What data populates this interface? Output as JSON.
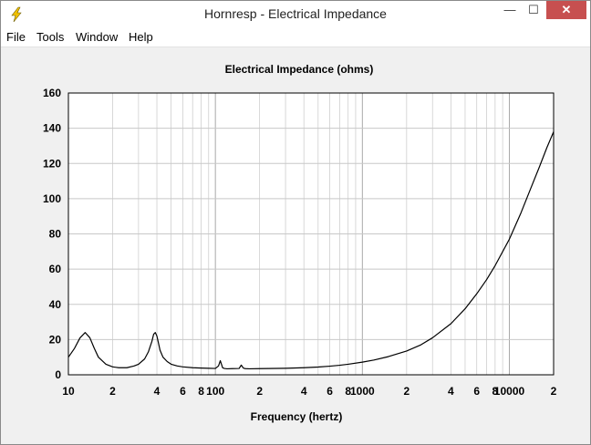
{
  "window": {
    "title": "Hornresp - Electrical Impedance",
    "minimize_glyph": "—",
    "maximize_glyph": "☐",
    "close_glyph": "✕",
    "icon": "lightning-bolt-icon"
  },
  "menu": {
    "items": [
      "File",
      "Tools",
      "Window",
      "Help"
    ]
  },
  "colors": {
    "plot_background": "#ffffff",
    "grid": "#c8c8c8",
    "curve": "#000000",
    "close_button": "#c75050",
    "icon_bolt": "#f2c200"
  },
  "chart_data": {
    "type": "line",
    "title": "Electrical Impedance (ohms)",
    "xlabel": "Frequency (hertz)",
    "ylabel": "",
    "x_scale": "log",
    "xlim": [
      10,
      20000
    ],
    "ylim": [
      0,
      160
    ],
    "grid": true,
    "y_ticks": [
      0,
      20,
      40,
      60,
      80,
      100,
      120,
      140,
      160
    ],
    "y_tick_labels": [
      "0",
      "20",
      "40",
      "60",
      "80",
      "100",
      "120",
      "140",
      "160"
    ],
    "x_ticks": [
      10,
      20,
      40,
      60,
      80,
      100,
      200,
      400,
      600,
      800,
      1000,
      2000,
      4000,
      6000,
      8000,
      10000,
      20000
    ],
    "x_tick_labels": [
      "10",
      "2",
      "4",
      "6",
      "8",
      "100",
      "2",
      "4",
      "6",
      "8",
      "1000",
      "2",
      "4",
      "6",
      "8",
      "10000",
      "2"
    ],
    "series": [
      {
        "x": [
          10,
          11,
          12,
          13,
          14,
          15,
          16,
          18,
          20,
          22,
          25,
          28,
          30,
          33,
          35,
          37,
          38,
          39,
          40,
          41,
          42,
          44,
          47,
          50,
          55,
          60,
          70,
          80,
          90,
          100,
          105,
          108,
          110,
          112,
          115,
          120,
          130,
          145,
          150,
          155,
          160,
          170,
          200,
          300,
          400,
          500,
          600,
          700,
          800,
          1000,
          1200,
          1500,
          2000,
          2500,
          3000,
          4000,
          5000,
          6000,
          7000,
          8000,
          10000,
          12000,
          14000,
          16000,
          18000,
          20000
        ],
        "y": [
          10,
          15,
          21,
          24,
          21,
          15,
          10,
          6,
          4.5,
          4,
          4,
          5,
          6,
          9,
          13,
          19,
          23,
          24,
          22,
          18,
          14,
          10,
          7.5,
          6,
          5,
          4.5,
          4,
          3.8,
          3.7,
          3.6,
          5,
          8,
          6,
          4,
          3.6,
          3.4,
          3.5,
          3.6,
          5.5,
          3.8,
          3.5,
          3.4,
          3.5,
          3.7,
          4,
          4.4,
          4.9,
          5.4,
          6,
          7.2,
          8.4,
          10.3,
          13.5,
          17,
          21,
          29,
          37.5,
          46,
          54,
          62,
          77,
          92,
          106,
          118,
          129,
          138
        ]
      }
    ]
  }
}
